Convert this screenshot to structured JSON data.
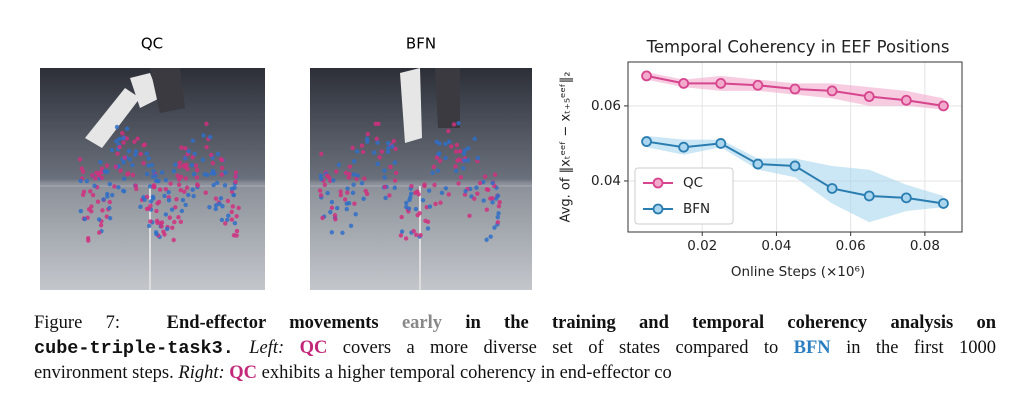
{
  "panels": [
    "QC",
    "BFN"
  ],
  "chart_data": {
    "type": "line",
    "title": "Temporal Coherency in EEF Positions",
    "xlabel": "Online Steps (×10⁶)",
    "ylabel": "Avg. of ‖xₜᵉᵉᶠ − xₜ₊₅ᵉᵉᶠ‖₂",
    "x": [
      0.005,
      0.015,
      0.025,
      0.035,
      0.045,
      0.055,
      0.065,
      0.075,
      0.085
    ],
    "series": [
      {
        "name": "QC",
        "color": "#d6458d",
        "band_color": "#f2aacd",
        "values": [
          0.068,
          0.066,
          0.066,
          0.0655,
          0.0645,
          0.064,
          0.0625,
          0.0615,
          0.06
        ],
        "lower": [
          0.067,
          0.065,
          0.064,
          0.064,
          0.063,
          0.062,
          0.06,
          0.06,
          0.059
        ],
        "upper": [
          0.069,
          0.067,
          0.068,
          0.067,
          0.066,
          0.066,
          0.065,
          0.064,
          0.062
        ]
      },
      {
        "name": "BFN",
        "color": "#2a7db0",
        "band_color": "#a9d5ee",
        "values": [
          0.0505,
          0.049,
          0.05,
          0.0445,
          0.044,
          0.038,
          0.036,
          0.0355,
          0.034
        ],
        "lower": [
          0.049,
          0.047,
          0.049,
          0.043,
          0.041,
          0.034,
          0.029,
          0.032,
          0.033
        ],
        "upper": [
          0.052,
          0.051,
          0.051,
          0.046,
          0.046,
          0.044,
          0.043,
          0.039,
          0.036
        ]
      }
    ],
    "xlim": [
      0,
      0.09
    ],
    "ylim": [
      0.0264,
      0.0717
    ],
    "xticks": [
      0.02,
      0.04,
      0.06,
      0.08
    ],
    "yticks": [
      0.04,
      0.06
    ],
    "grid": true,
    "legend": "lower left"
  },
  "caption": {
    "segments": [
      "Figure 7:",
      "End-effector movements",
      "early",
      "in the training and temporal coherency analysis on",
      "cube-triple-task3.",
      "Left:",
      "QC",
      "covers a more diverse set of states compared to",
      "BFN",
      "in the first 1000",
      "environment steps.",
      "Right:",
      "QC",
      "exhibits a higher temporal coherency in end-effector co"
    ]
  }
}
